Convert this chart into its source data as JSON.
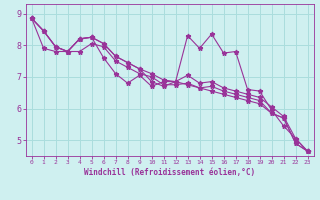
{
  "title": "",
  "xlabel": "Windchill (Refroidissement éolien,°C)",
  "ylabel": "",
  "bg_color": "#cff0f0",
  "line_color": "#993399",
  "grid_color": "#aadddd",
  "xlim": [
    -0.5,
    23.5
  ],
  "ylim": [
    4.5,
    9.3
  ],
  "yticks": [
    5,
    6,
    7,
    8,
    9
  ],
  "xticks": [
    0,
    1,
    2,
    3,
    4,
    5,
    6,
    7,
    8,
    9,
    10,
    11,
    12,
    13,
    14,
    15,
    16,
    17,
    18,
    19,
    20,
    21,
    22,
    23
  ],
  "series": [
    [
      8.85,
      8.45,
      7.95,
      7.8,
      8.2,
      8.25,
      8.05,
      7.65,
      7.45,
      7.25,
      6.85,
      6.7,
      6.85,
      8.3,
      7.9,
      8.35,
      7.75,
      7.8,
      6.6,
      6.55,
      5.95,
      5.45,
      5.05,
      4.65
    ],
    [
      8.85,
      8.45,
      7.95,
      7.8,
      8.2,
      8.25,
      7.6,
      7.1,
      6.8,
      7.05,
      6.7,
      6.85,
      6.85,
      7.05,
      6.8,
      6.85,
      6.65,
      6.55,
      6.45,
      6.35,
      6.05,
      5.75,
      5.05,
      4.65
    ],
    [
      8.85,
      7.9,
      7.8,
      7.8,
      7.8,
      8.05,
      7.95,
      7.5,
      7.3,
      7.1,
      7.0,
      6.75,
      6.75,
      6.8,
      6.65,
      6.7,
      6.55,
      6.45,
      6.35,
      6.25,
      5.85,
      5.7,
      4.9,
      4.65
    ],
    [
      8.85,
      8.45,
      7.95,
      7.8,
      8.2,
      8.25,
      8.05,
      7.65,
      7.45,
      7.25,
      7.1,
      6.9,
      6.85,
      6.75,
      6.65,
      6.55,
      6.45,
      6.35,
      6.25,
      6.15,
      5.85,
      5.7,
      4.9,
      4.65
    ]
  ]
}
